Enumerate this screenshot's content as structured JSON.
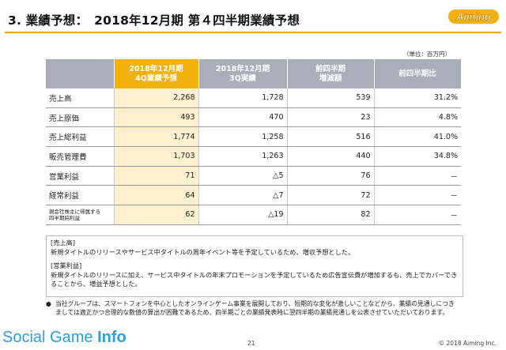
{
  "header": {
    "title": "3. 業績予想：　2018年12月期 第４四半期業績予想",
    "logo_text": "Aiming"
  },
  "unit_note": "（単位：百万円）",
  "table": {
    "headers": [
      {
        "line1": "",
        "line2": ""
      },
      {
        "line1": "2018年12月期",
        "line2": "4Q業績予想"
      },
      {
        "line1": "2018年12月期",
        "line2": "3Q実績"
      },
      {
        "line1": "前四半期",
        "line2": "増減額"
      },
      {
        "line1": "前四半期比",
        "line2": ""
      }
    ],
    "rows": [
      {
        "label": "売上高",
        "forecast": "2,268",
        "actual": "1,728",
        "change": "539",
        "ratio": "31.2%"
      },
      {
        "label": "売上原価",
        "forecast": "493",
        "actual": "470",
        "change": "23",
        "ratio": "4.8%"
      },
      {
        "label": "売上総利益",
        "forecast": "1,774",
        "actual": "1,258",
        "change": "516",
        "ratio": "41.0%"
      },
      {
        "label": "販売管理費",
        "forecast": "1,703",
        "actual": "1,263",
        "change": "440",
        "ratio": "34.8%"
      },
      {
        "label": "営業利益",
        "forecast": "71",
        "actual": "△5",
        "change": "76",
        "ratio": "－"
      },
      {
        "label": "経常利益",
        "forecast": "64",
        "actual": "△7",
        "change": "72",
        "ratio": "－"
      },
      {
        "label": "親会社株主に帰属する四半期純利益",
        "label_line1": "親会社株主に帰属する",
        "label_line2": "四半期純利益",
        "forecast": "62",
        "actual": "△19",
        "change": "82",
        "ratio": "－"
      }
    ]
  },
  "notes": {
    "sales_heading": "[売上高]",
    "sales_text": "新規タイトルのリリースやサービス中タイトルの周年イベント等を予定しているため、増収予想とした。",
    "op_heading": "[営業利益]",
    "op_text": "新規タイトルのリリースに加え、サービス中タイトルの年末プロモーションを予定しているため広告宣伝費が増加するも、売上でカバーできることから、増益予想とした。"
  },
  "footnote": {
    "bullet": "●",
    "text": "当社グループは、スマートフォンを中心としたオンラインゲーム事業を展開しており、短期的な変化が激しいことなどから、業績の見通しにつきましては適正かつ合理的な数値の算出が困難であるため、四半期ごとの業績発表時に翌四半期の業績見通しを公表させていただいております。"
  },
  "footer": {
    "brand_light": "Social Game ",
    "brand_bold": "Info",
    "page": "21",
    "copyright": "© 2018 Aiming Inc."
  },
  "colors": {
    "accent": "#f3b10e",
    "header_gray": "#a9aeb8",
    "highlight_cell": "#fdf0cf",
    "brand_blue": "#2f9ed7"
  }
}
